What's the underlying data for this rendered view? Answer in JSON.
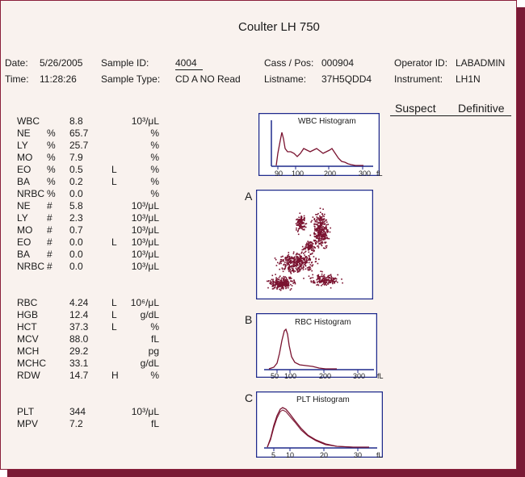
{
  "report": {
    "title": "Coulter LH 750",
    "header": {
      "date_label": "Date:",
      "date_value": "5/26/2005",
      "time_label": "Time:",
      "time_value": "11:28:26",
      "sample_id_label": "Sample ID:",
      "sample_id_value": "4004",
      "sample_type_label": "Sample Type:",
      "sample_type_value": "CD A NO Read",
      "cass_label": "Cass / Pos:",
      "cass_value": "000904",
      "listname_label": "Listname:",
      "listname_value": "37H5QDD4",
      "operator_label": "Operator ID:",
      "operator_value": "LABADMIN",
      "instrument_label": "Instrument:",
      "instrument_value": "LH1N"
    },
    "suspect_label": "Suspect",
    "definitive_label": "Definitive",
    "rows": [
      {
        "name": "WBC",
        "sub": "",
        "value": "8.8",
        "flag": "",
        "unit": "10³/μL"
      },
      {
        "name": "NE",
        "sub": "%",
        "value": "65.7",
        "flag": "",
        "unit": "%"
      },
      {
        "name": "LY",
        "sub": "%",
        "value": "25.7",
        "flag": "",
        "unit": "%"
      },
      {
        "name": "MO",
        "sub": "%",
        "value": "7.9",
        "flag": "",
        "unit": "%"
      },
      {
        "name": "EO",
        "sub": "%",
        "value": "0.5",
        "flag": "L",
        "unit": "%"
      },
      {
        "name": "BA",
        "sub": "%",
        "value": "0.2",
        "flag": "L",
        "unit": "%"
      },
      {
        "name": "NRBC",
        "sub": "%",
        "value": "0.0",
        "flag": "",
        "unit": "%"
      },
      {
        "name": "NE",
        "sub": "#",
        "value": "5.8",
        "flag": "",
        "unit": "10³/μL"
      },
      {
        "name": "LY",
        "sub": "#",
        "value": "2.3",
        "flag": "",
        "unit": "10³/μL"
      },
      {
        "name": "MO",
        "sub": "#",
        "value": "0.7",
        "flag": "",
        "unit": "10³/μL"
      },
      {
        "name": "EO",
        "sub": "#",
        "value": "0.0",
        "flag": "L",
        "unit": "10³/μL"
      },
      {
        "name": "BA",
        "sub": "#",
        "value": "0.0",
        "flag": "",
        "unit": "10³/μL"
      },
      {
        "name": "NRBC",
        "sub": "#",
        "value": "0.0",
        "flag": "",
        "unit": "10³/μL"
      },
      {
        "name": "RBC",
        "sub": "",
        "value": "4.24",
        "flag": "L",
        "unit": "10⁶/μL"
      },
      {
        "name": "HGB",
        "sub": "",
        "value": "12.4",
        "flag": "L",
        "unit": "g/dL"
      },
      {
        "name": "HCT",
        "sub": "",
        "value": "37.3",
        "flag": "L",
        "unit": "%"
      },
      {
        "name": "MCV",
        "sub": "",
        "value": "88.0",
        "flag": "",
        "unit": "fL"
      },
      {
        "name": "MCH",
        "sub": "",
        "value": "29.2",
        "flag": "",
        "unit": "pg"
      },
      {
        "name": "MCHC",
        "sub": "",
        "value": "33.1",
        "flag": "",
        "unit": "g/dL"
      },
      {
        "name": "RDW",
        "sub": "",
        "value": "14.7",
        "flag": "H",
        "unit": "%"
      },
      {
        "name": "PLT",
        "sub": "",
        "value": "344",
        "flag": "",
        "unit": "10³/μL"
      },
      {
        "name": "MPV",
        "sub": "",
        "value": "7.2",
        "flag": "",
        "unit": "fL"
      }
    ],
    "panel_letters": {
      "a": "A",
      "b": "B",
      "c": "C"
    },
    "wbc_hist": {
      "title": "WBC Histogram",
      "ticks": [
        "90",
        "100",
        "200",
        "300",
        "fL"
      ]
    },
    "rbc_hist": {
      "title": "RBC Histogram",
      "ticks": [
        "50",
        "100",
        "200",
        "300",
        "fL"
      ]
    },
    "plt_hist": {
      "title": "PLT Histogram",
      "ticks": [
        "5",
        "10",
        "20",
        "30",
        "fL"
      ]
    },
    "colors": {
      "frame": "#8a1f3a",
      "curve": "#7a1330",
      "scatter": "#7a1330",
      "box": "#1f2a8c",
      "shadow": "#7a1a35"
    }
  }
}
